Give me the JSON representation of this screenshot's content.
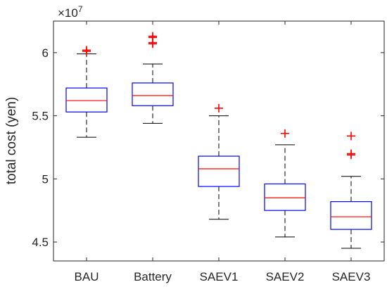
{
  "chart_data": {
    "type": "boxplot",
    "ylabel": "total cost (yen)",
    "y_multiplier_base": "×10",
    "y_multiplier_exponent": "7",
    "ylim": [
      4.35,
      6.25
    ],
    "yticks": [
      4.5,
      5,
      5.5,
      6
    ],
    "ytick_labels": [
      "4.5",
      "5",
      "5.5",
      "6"
    ],
    "grid": false,
    "colors": {
      "box": "#0000ff",
      "median": "#ff0000",
      "whisker": "#000000",
      "outlier": "#ff0000",
      "axis": "#262626"
    },
    "categories": [
      "BAU",
      "Battery",
      "SAEV1",
      "SAEV2",
      "SAEV3"
    ],
    "boxes": [
      {
        "label": "BAU",
        "whisker_low": 5.33,
        "q1": 5.53,
        "median": 5.62,
        "q3": 5.72,
        "whisker_high": 5.99,
        "outliers": [
          6.01,
          6.02
        ]
      },
      {
        "label": "Battery",
        "whisker_low": 5.44,
        "q1": 5.58,
        "median": 5.66,
        "q3": 5.76,
        "whisker_high": 5.91,
        "outliers": [
          6.07,
          6.08,
          6.12,
          6.13
        ]
      },
      {
        "label": "SAEV1",
        "whisker_low": 4.68,
        "q1": 4.94,
        "median": 5.08,
        "q3": 5.18,
        "whisker_high": 5.5,
        "outliers": [
          5.56
        ]
      },
      {
        "label": "SAEV2",
        "whisker_low": 4.54,
        "q1": 4.75,
        "median": 4.85,
        "q3": 4.96,
        "whisker_high": 5.27,
        "outliers": [
          5.36
        ]
      },
      {
        "label": "SAEV3",
        "whisker_low": 4.45,
        "q1": 4.6,
        "median": 4.7,
        "q3": 4.82,
        "whisker_high": 5.02,
        "outliers": [
          5.19,
          5.2,
          5.34
        ]
      }
    ]
  }
}
